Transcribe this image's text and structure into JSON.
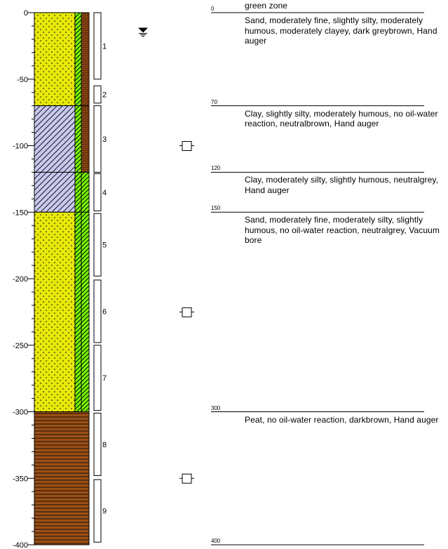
{
  "depth_axis": {
    "ticks": [
      "0",
      "-50",
      "-100",
      "-150",
      "-200",
      "-250",
      "-300",
      "-350",
      "-400"
    ],
    "tick_values": [
      0,
      -50,
      -100,
      -150,
      -200,
      -250,
      -300,
      -350,
      -400
    ],
    "range": [
      0,
      -400
    ]
  },
  "layers": [
    {
      "top": 0,
      "bottom": 70,
      "pattern": "sand",
      "base_color": "#e8e80a",
      "side_color": "#8b4513"
    },
    {
      "top": 70,
      "bottom": 120,
      "pattern": "clay",
      "base_color": "#c8c8f0",
      "side_color": "#8b4513"
    },
    {
      "top": 120,
      "bottom": 150,
      "pattern": "clay",
      "base_color": "#c8c8f0",
      "side_color": "#7cfc00"
    },
    {
      "top": 150,
      "bottom": 300,
      "pattern": "sand",
      "base_color": "#e8e80a",
      "side_color": "#7cfc00"
    },
    {
      "top": 300,
      "bottom": 400,
      "pattern": "peat",
      "base_color": "#9a4f16",
      "side_color": "#9a4f16"
    }
  ],
  "samples": [
    {
      "label": "1",
      "top": 0,
      "bottom": 50
    },
    {
      "label": "2",
      "top": 55,
      "bottom": 68
    },
    {
      "label": "3",
      "top": 70,
      "bottom": 120
    },
    {
      "label": "4",
      "top": 121,
      "bottom": 149
    },
    {
      "label": "5",
      "top": 151,
      "bottom": 198
    },
    {
      "label": "6",
      "top": 201,
      "bottom": 248
    },
    {
      "label": "7",
      "top": 250,
      "bottom": 299
    },
    {
      "label": "8",
      "top": 301,
      "bottom": 348
    },
    {
      "label": "9",
      "top": 351,
      "bottom": 398
    }
  ],
  "water_level_depth": 14,
  "markers": [
    -100,
    -225,
    -350
  ],
  "descriptions": [
    {
      "depth_label": "0",
      "text": "green zone",
      "line_depth": 0,
      "text_depth": 0,
      "pre": true
    },
    {
      "depth_label": "",
      "text": "Sand, moderately fine, slightly silty, moderately humous, moderately clayey, dark greybrown, Hand auger",
      "line_depth": null,
      "text_depth": 0
    },
    {
      "depth_label": "70",
      "text": "Clay, slightly silty, moderately humous, no oil-water reaction, neutralbrown, Hand auger",
      "line_depth": 70,
      "text_depth": 70
    },
    {
      "depth_label": "120",
      "text": "Clay, moderately silty, slightly humous, neutralgrey, Hand auger",
      "line_depth": 120,
      "text_depth": 120
    },
    {
      "depth_label": "150",
      "text": "Sand, moderately fine, moderately silty, slightly humous, no oil-water reaction, neutralgrey, Vacuum bore",
      "line_depth": 150,
      "text_depth": 150
    },
    {
      "depth_label": "300",
      "text": "Peat, no oil-water reaction, darkbrown, Hand auger",
      "line_depth": 300,
      "text_depth": 300
    },
    {
      "depth_label": "400",
      "text": "",
      "line_depth": 400,
      "text_depth": 400
    }
  ],
  "colors": {
    "sand": "#e8e80a",
    "clay": "#c8c8f0",
    "peat": "#9a4f16",
    "green": "#7cfc00",
    "brown": "#8b4513"
  }
}
